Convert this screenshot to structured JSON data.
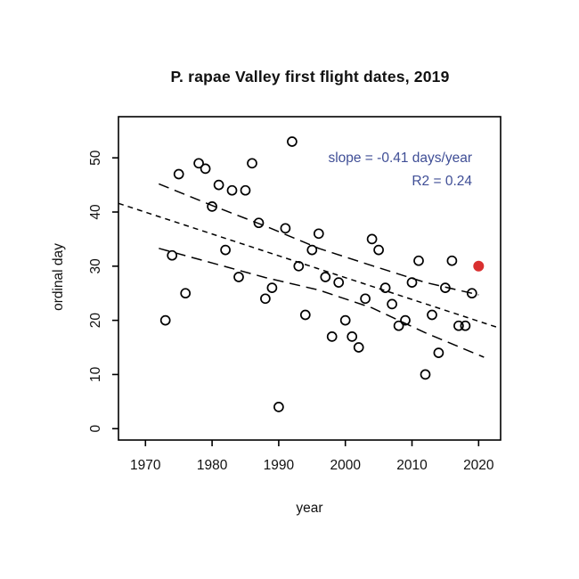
{
  "title": "P. rapae Valley first flight dates, 2019",
  "annotation": {
    "slope_text": "slope = -0.41 days/year",
    "r2_text": "R2 = 0.24",
    "color": "#3F4E96"
  },
  "chart_data": {
    "type": "scatter",
    "title": "P. rapae Valley first flight dates, 2019",
    "xlabel": "year",
    "ylabel": "ordinal day",
    "xlim": [
      1965.95,
      2023.3
    ],
    "ylim": [
      -2.1,
      57.6
    ],
    "x_ticks": [
      1970,
      1980,
      1990,
      2000,
      2010,
      2020
    ],
    "y_ticks": [
      0,
      10,
      20,
      30,
      40,
      50
    ],
    "grid": false,
    "legend": "none",
    "marker": "open-circle",
    "marker_color": "#000000",
    "points": [
      [
        1973,
        20
      ],
      [
        1974,
        32
      ],
      [
        1975,
        47
      ],
      [
        1976,
        25
      ],
      [
        1978,
        49
      ],
      [
        1979,
        48
      ],
      [
        1980,
        41
      ],
      [
        1981,
        45
      ],
      [
        1982,
        33
      ],
      [
        1983,
        44
      ],
      [
        1984,
        28
      ],
      [
        1985,
        44
      ],
      [
        1986,
        49
      ],
      [
        1987,
        38
      ],
      [
        1988,
        24
      ],
      [
        1989,
        26
      ],
      [
        1990,
        4
      ],
      [
        1991,
        37
      ],
      [
        1992,
        53
      ],
      [
        1993,
        30
      ],
      [
        1994,
        21
      ],
      [
        1995,
        33
      ],
      [
        1996,
        36
      ],
      [
        1997,
        28
      ],
      [
        1998,
        17
      ],
      [
        1999,
        27
      ],
      [
        2000,
        20
      ],
      [
        2001,
        17
      ],
      [
        2002,
        15
      ],
      [
        2003,
        24
      ],
      [
        2004,
        35
      ],
      [
        2005,
        33
      ],
      [
        2006,
        26
      ],
      [
        2007,
        23
      ],
      [
        2008,
        19
      ],
      [
        2009,
        20
      ],
      [
        2010,
        27
      ],
      [
        2011,
        31
      ],
      [
        2012,
        10
      ],
      [
        2013,
        21
      ],
      [
        2014,
        14
      ],
      [
        2015,
        26
      ],
      [
        2016,
        31
      ],
      [
        2017,
        19
      ],
      [
        2018,
        19
      ],
      [
        2019,
        25
      ]
    ],
    "highlight_point": {
      "year": 2020,
      "day": 30,
      "color": "#D93030"
    },
    "fit_line": {
      "dash": "short",
      "slope_days_per_year": -0.41,
      "r2": 0.24,
      "points": [
        [
          1965.95,
          41.6
        ],
        [
          2023.3,
          18.5
        ]
      ]
    },
    "conf_band_upper": {
      "dash": "long",
      "points": [
        [
          1972,
          45.2
        ],
        [
          1980,
          41.2
        ],
        [
          1988,
          37.4
        ],
        [
          1996,
          33.3
        ],
        [
          2004,
          30.1
        ],
        [
          2012,
          27.0
        ],
        [
          2020,
          24.7
        ]
      ]
    },
    "conf_band_lower": {
      "dash": "long",
      "points": [
        [
          1972,
          33.3
        ],
        [
          1980,
          30.6
        ],
        [
          1988,
          27.9
        ],
        [
          1996,
          25.6
        ],
        [
          2004,
          22.3
        ],
        [
          2012,
          17.7
        ],
        [
          2020.8,
          13.2
        ]
      ]
    }
  }
}
